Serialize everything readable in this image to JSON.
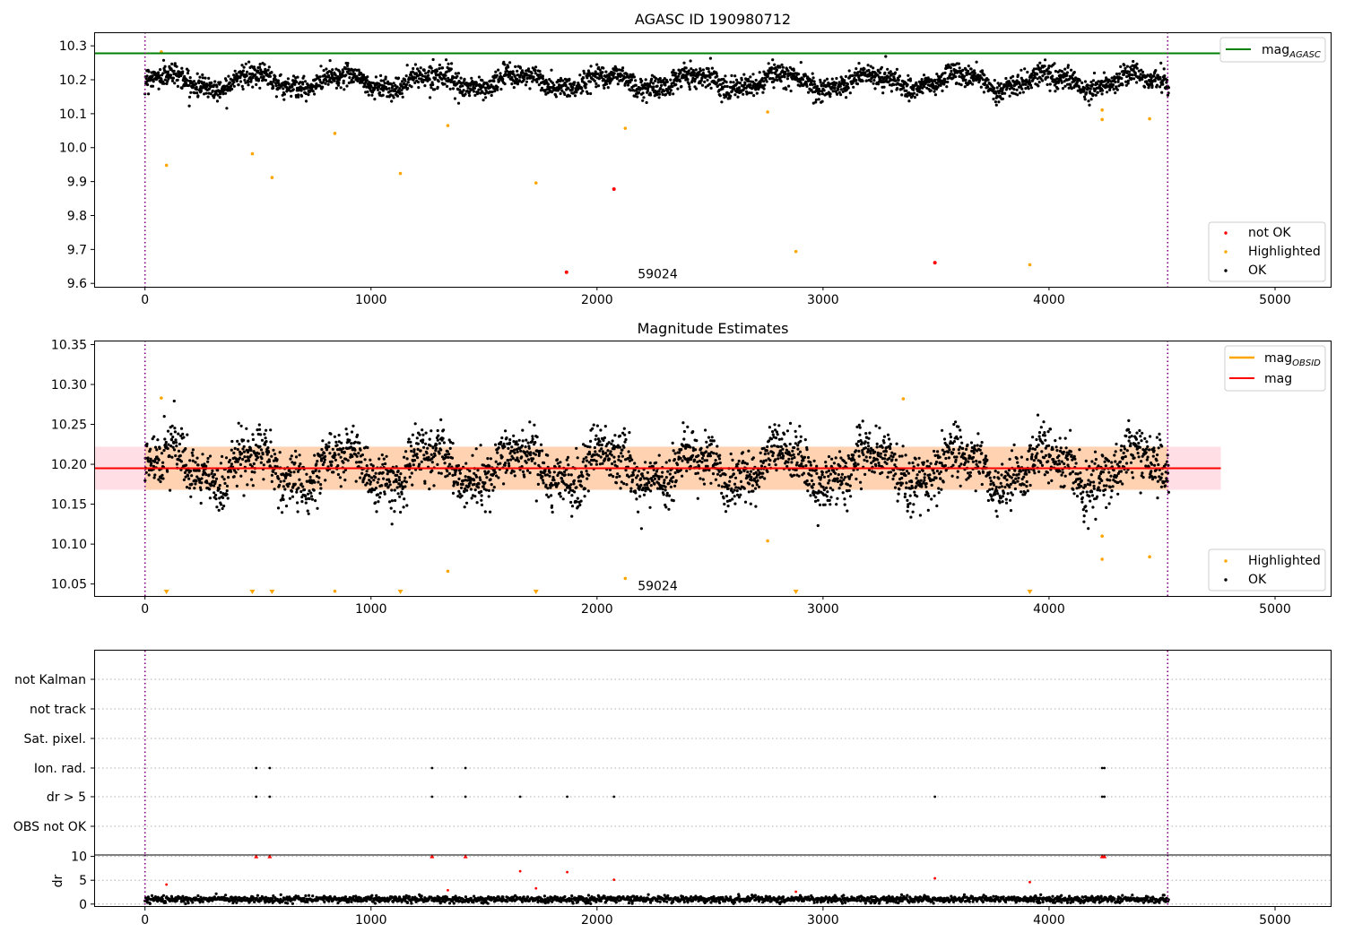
{
  "chart_data": [
    {
      "id": "panel1",
      "type": "scatter",
      "title": "AGASC ID 190980712",
      "xlim": [
        -225,
        5250
      ],
      "ylim": [
        9.59,
        10.34
      ],
      "x_ticks": [
        0,
        1000,
        2000,
        3000,
        4000,
        5000
      ],
      "y_ticks": [
        9.6,
        9.7,
        9.8,
        9.9,
        10.0,
        10.1,
        10.2,
        10.3
      ],
      "y_tick_labels": [
        "9.6",
        "9.7",
        "9.8",
        "9.9",
        "10.0",
        "10.1",
        "10.2",
        "10.3"
      ],
      "vlines": [
        0,
        4525
      ],
      "hline": {
        "name": "mag",
        "subscript": "AGASC",
        "value": 10.278,
        "color": "#008000",
        "x_end": 4760
      },
      "annotation": {
        "text": "59024",
        "x": 2180,
        "y": 9.628
      },
      "ok_series": {
        "name": "OK",
        "color": "#000000",
        "x_range": [
          0,
          4530
        ],
        "center": 10.195,
        "amplitude": 0.022,
        "noise": 0.016,
        "count": 3000
      },
      "highlighted": {
        "name": "Highlighted",
        "color": "#ffa500",
        "points": [
          [
            72,
            10.282
          ],
          [
            95,
            9.948
          ],
          [
            475,
            9.982
          ],
          [
            562,
            9.912
          ],
          [
            840,
            10.042
          ],
          [
            1130,
            9.924
          ],
          [
            1340,
            10.065
          ],
          [
            1730,
            9.896
          ],
          [
            2125,
            10.057
          ],
          [
            2755,
            10.105
          ],
          [
            2880,
            9.694
          ],
          [
            3915,
            9.655
          ],
          [
            4235,
            10.111
          ],
          [
            4235,
            10.083
          ],
          [
            4445,
            10.085
          ]
        ]
      },
      "not_ok": {
        "name": "not OK",
        "color": "#ff0000",
        "points": [
          [
            1865,
            9.633
          ],
          [
            2075,
            9.878
          ],
          [
            3495,
            9.661
          ]
        ]
      },
      "legend_upper": [
        "mag"
      ],
      "legend_lower": [
        "not OK",
        "Highlighted",
        "OK"
      ]
    },
    {
      "id": "panel2",
      "type": "scatter",
      "title": "Magnitude Estimates",
      "xlim": [
        -225,
        5250
      ],
      "ylim": [
        10.035,
        10.355
      ],
      "x_ticks": [
        0,
        1000,
        2000,
        3000,
        4000,
        5000
      ],
      "y_ticks": [
        10.05,
        10.1,
        10.15,
        10.2,
        10.25,
        10.3,
        10.35
      ],
      "y_tick_labels": [
        "10.05",
        "10.10",
        "10.15",
        "10.20",
        "10.25",
        "10.30",
        "10.35"
      ],
      "vlines": [
        0,
        4525
      ],
      "mag_line": {
        "name": "mag",
        "value": 10.195,
        "color": "#ff0000"
      },
      "mag_band": {
        "low": 10.168,
        "high": 10.222,
        "x_end": 4760
      },
      "mag_obsid": {
        "name": "mag",
        "subscript": "OBSID",
        "color": "#ffa500"
      },
      "annotation": {
        "text": "59024",
        "x": 2180,
        "y": 10.048
      },
      "ok_series": {
        "name": "OK",
        "color": "#000000",
        "x_range": [
          0,
          4530
        ],
        "center": 10.195,
        "amplitude": 0.022,
        "noise": 0.016,
        "count": 3000
      },
      "highlighted": {
        "name": "Highlighted",
        "color": "#ffa500",
        "points": [
          [
            72,
            10.283
          ],
          [
            840,
            10.041
          ],
          [
            1340,
            10.066
          ],
          [
            2125,
            10.057
          ],
          [
            2755,
            10.104
          ],
          [
            3355,
            10.282
          ],
          [
            4235,
            10.11
          ],
          [
            4235,
            10.081
          ],
          [
            4445,
            10.084
          ]
        ]
      },
      "lower_limits_x": [
        95,
        475,
        562,
        1130,
        1730,
        2880,
        3915
      ],
      "legend_upper": [
        "mag OBSID",
        "mag"
      ],
      "legend_lower": [
        "Highlighted",
        "OK"
      ]
    },
    {
      "id": "panel3",
      "type": "scatter",
      "xlim": [
        -225,
        5250
      ],
      "x_ticks": [
        0,
        1000,
        2000,
        3000,
        4000,
        5000
      ],
      "vlines": [
        0,
        4525
      ],
      "categories": [
        "not Kalman",
        "not track",
        "Sat. pixel.",
        "Ion. rad.",
        "dr > 5",
        "OBS not OK"
      ],
      "flag_points": {
        "Ion. rad.": [
          492,
          552,
          1270,
          1418,
          4235,
          4245
        ],
        "dr > 5": [
          492,
          552,
          1270,
          1418,
          1660,
          1868,
          2075,
          3495,
          4235,
          4245
        ]
      }
    },
    {
      "id": "panel4",
      "type": "scatter",
      "ylabel": "dr",
      "xlim": [
        -225,
        5250
      ],
      "ylim": [
        -0.6,
        10.3
      ],
      "y_ticks": [
        0,
        5,
        10
      ],
      "y_tick_labels": [
        "0",
        "5",
        "10"
      ],
      "x_ticks": [
        0,
        1000,
        2000,
        3000,
        4000,
        5000
      ],
      "x_tick_labels": [
        "0",
        "1000",
        "2000",
        "3000",
        "4000",
        "5000"
      ],
      "vlines": [
        0,
        4525
      ],
      "ok_series": {
        "name": "OK",
        "color": "#000000",
        "x_range": [
          0,
          4530
        ],
        "center": 1.0,
        "noise": 0.35,
        "count": 1900
      },
      "outliers": [
        [
          95,
          4.1
        ],
        [
          1340,
          2.9
        ],
        [
          1730,
          3.3
        ],
        [
          2880,
          2.6
        ],
        [
          3915,
          4.6
        ],
        [
          1660,
          6.9
        ],
        [
          1868,
          6.7
        ],
        [
          2075,
          5.1
        ],
        [
          3495,
          5.4
        ],
        [
          492,
          10
        ],
        [
          552,
          10
        ],
        [
          1270,
          10
        ],
        [
          1418,
          10
        ],
        [
          4235,
          10
        ],
        [
          4245,
          10
        ]
      ]
    }
  ]
}
